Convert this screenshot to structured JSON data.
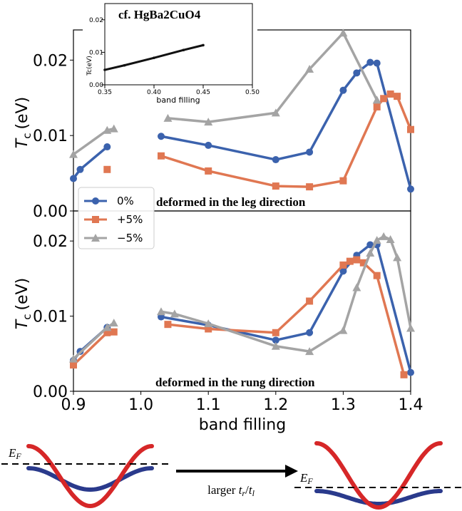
{
  "colors": {
    "s0": "#3b62ad",
    "s_plus": "#e07752",
    "s_minus": "#a4a4a4",
    "band_red": "#d62728",
    "band_blue": "#2a3a8c"
  },
  "chart_data": [
    {
      "type": "line",
      "annotation": "deformed in the leg direction",
      "ylabel_main": "T",
      "ylabel_sub": "c",
      "ylabel_unit": "(eV)",
      "xlim": [
        0.9,
        1.4
      ],
      "ylim": [
        0.0,
        0.024
      ],
      "yticks": [
        "0.00",
        "0.01",
        "0.02"
      ],
      "ytick_values": [
        0.0,
        0.01,
        0.02
      ],
      "series": [
        {
          "name": "0%",
          "marker": "circle",
          "segments": [
            [
              [
                0.9,
                0.0043
              ],
              [
                0.91,
                0.0055
              ],
              [
                0.95,
                0.0085
              ]
            ],
            [
              [
                1.03,
                0.0099
              ],
              [
                1.1,
                0.0087
              ],
              [
                1.2,
                0.0068
              ],
              [
                1.25,
                0.0078
              ],
              [
                1.3,
                0.016
              ],
              [
                1.32,
                0.0183
              ],
              [
                1.34,
                0.0197
              ],
              [
                1.35,
                0.0196
              ],
              [
                1.4,
                0.0029
              ]
            ]
          ]
        },
        {
          "name": "+5%",
          "marker": "square",
          "segments": [
            [
              [
                0.95,
                0.0055
              ]
            ],
            [
              [
                1.03,
                0.0073
              ],
              [
                1.1,
                0.0053
              ],
              [
                1.2,
                0.0033
              ],
              [
                1.25,
                0.0032
              ],
              [
                1.3,
                0.004
              ],
              [
                1.35,
                0.0138
              ],
              [
                1.36,
                0.0149
              ],
              [
                1.37,
                0.0155
              ],
              [
                1.38,
                0.0152
              ],
              [
                1.4,
                0.0108
              ]
            ]
          ]
        },
        {
          "name": "−5%",
          "marker": "triangle",
          "segments": [
            [
              [
                0.9,
                0.0075
              ],
              [
                0.95,
                0.0107
              ],
              [
                0.96,
                0.0109
              ]
            ],
            [
              [
                1.04,
                0.0123
              ],
              [
                1.1,
                0.0118
              ],
              [
                1.2,
                0.013
              ],
              [
                1.25,
                0.0188
              ],
              [
                1.3,
                0.0236
              ],
              [
                1.35,
                0.0147
              ]
            ]
          ]
        }
      ]
    },
    {
      "type": "line",
      "annotation": "deformed in the rung direction",
      "ylabel_main": "T",
      "ylabel_sub": "c",
      "ylabel_unit": "(eV)",
      "xlabel": "band filling",
      "xlim": [
        0.9,
        1.4
      ],
      "ylim": [
        0.0,
        0.024
      ],
      "xticks": [
        "0.9",
        "1.0",
        "1.1",
        "1.2",
        "1.3",
        "1.4"
      ],
      "xtick_values": [
        0.9,
        1.0,
        1.1,
        1.2,
        1.3,
        1.4
      ],
      "yticks": [
        "0.00",
        "0.01",
        "0.02"
      ],
      "ytick_values": [
        0.0,
        0.01,
        0.02
      ],
      "series": [
        {
          "name": "0%",
          "marker": "circle",
          "segments": [
            [
              [
                0.9,
                0.0041
              ],
              [
                0.91,
                0.0053
              ],
              [
                0.95,
                0.0085
              ]
            ],
            [
              [
                1.03,
                0.0099
              ],
              [
                1.1,
                0.0088
              ],
              [
                1.2,
                0.0068
              ],
              [
                1.25,
                0.0078
              ],
              [
                1.3,
                0.016
              ],
              [
                1.32,
                0.0181
              ],
              [
                1.34,
                0.0195
              ],
              [
                1.35,
                0.0195
              ],
              [
                1.4,
                0.0025
              ]
            ]
          ]
        },
        {
          "name": "+5%",
          "marker": "square",
          "segments": [
            [
              [
                0.9,
                0.0035
              ],
              [
                0.95,
                0.0078
              ],
              [
                0.96,
                0.0079
              ]
            ],
            [
              [
                1.04,
                0.0089
              ],
              [
                1.1,
                0.0083
              ],
              [
                1.2,
                0.0078
              ],
              [
                1.25,
                0.012
              ],
              [
                1.3,
                0.0168
              ],
              [
                1.31,
                0.0173
              ],
              [
                1.32,
                0.0175
              ],
              [
                1.33,
                0.0171
              ],
              [
                1.35,
                0.0154
              ],
              [
                1.39,
                0.0022
              ]
            ]
          ]
        },
        {
          "name": "−5%",
          "marker": "triangle",
          "segments": [
            [
              [
                0.9,
                0.0043
              ],
              [
                0.95,
                0.0085
              ],
              [
                0.96,
                0.0091
              ]
            ],
            [
              [
                1.03,
                0.0106
              ],
              [
                1.05,
                0.0103
              ],
              [
                1.1,
                0.009
              ],
              [
                1.2,
                0.006
              ],
              [
                1.25,
                0.0053
              ],
              [
                1.3,
                0.0081
              ],
              [
                1.32,
                0.0138
              ],
              [
                1.34,
                0.0184
              ],
              [
                1.35,
                0.0201
              ],
              [
                1.36,
                0.0206
              ],
              [
                1.37,
                0.0202
              ],
              [
                1.38,
                0.0178
              ],
              [
                1.4,
                0.0084
              ]
            ]
          ]
        }
      ]
    },
    {
      "type": "line",
      "title": "cf. HgBa2CuO4",
      "xlabel": "band filling",
      "ylabel": "Tc(eV)",
      "xlim": [
        0.35,
        0.5
      ],
      "ylim": [
        0.0,
        0.025
      ],
      "xticks": [
        "0.35",
        "0.40",
        "0.45",
        "0.50"
      ],
      "xtick_values": [
        0.35,
        0.4,
        0.45,
        0.5
      ],
      "yticks": [
        "0.00",
        "0.01",
        "0.02"
      ],
      "ytick_values": [
        0.0,
        0.01,
        0.02
      ],
      "series": [
        {
          "name": "",
          "marker": "dot",
          "segments": [
            [
              [
                0.35,
                0.0046
              ],
              [
                0.37,
                0.006
              ],
              [
                0.4,
                0.0083
              ],
              [
                0.43,
                0.0107
              ],
              [
                0.45,
                0.0122
              ]
            ]
          ]
        }
      ]
    }
  ],
  "legend": [
    {
      "label": "0%",
      "marker": "circle"
    },
    {
      "label": "+5%",
      "marker": "square"
    },
    {
      "label": "−5%",
      "marker": "triangle"
    }
  ],
  "schematic": {
    "ef_label_main": "E",
    "ef_label_sub": "F",
    "arrow_label_prefix": "larger ",
    "arrow_label_num": "t",
    "arrow_label_num_sub": "r",
    "arrow_label_sep": "/",
    "arrow_label_den": "t",
    "arrow_label_den_sub": "l"
  }
}
